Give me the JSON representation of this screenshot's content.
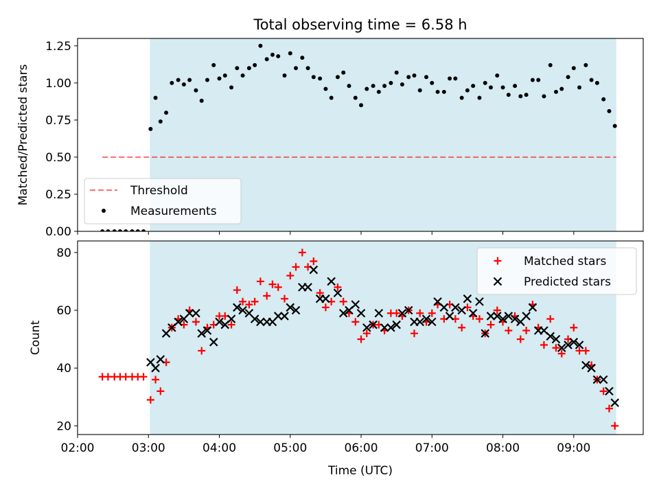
{
  "colors": {
    "shade": "#add8e6",
    "threshold": "#ff0000",
    "matched": "#ff0000",
    "predicted": "#000000",
    "measurement": "#000000"
  },
  "chart_data": [
    {
      "type": "scatter",
      "title": "Total observing time = 6.58 h",
      "xlabel": "",
      "ylabel": "Matched/Predicted stars",
      "ylim": [
        0,
        1.3
      ],
      "yticks": [
        "0.00",
        "0.25",
        "0.50",
        "0.75",
        "1.00",
        "1.25"
      ],
      "ytick_values": [
        0,
        0.25,
        0.5,
        0.75,
        1.0,
        1.25
      ],
      "xlim_hours": [
        2.0,
        9.98
      ],
      "shaded_span_hours": [
        3.02,
        9.6
      ],
      "legend_position": "lower-left",
      "series": [
        {
          "name": "Threshold",
          "kind": "dashed-line",
          "x_hours": [
            2.35,
            9.6
          ],
          "y": [
            0.5,
            0.5
          ]
        },
        {
          "name": "Measurements",
          "kind": "dot",
          "x_hours": [
            2.35,
            2.43,
            2.52,
            2.6,
            2.68,
            2.77,
            2.85,
            2.93,
            3.03,
            3.1,
            3.17,
            3.25,
            3.33,
            3.42,
            3.5,
            3.58,
            3.67,
            3.75,
            3.83,
            3.92,
            4.0,
            4.08,
            4.17,
            4.25,
            4.33,
            4.42,
            4.5,
            4.58,
            4.67,
            4.75,
            4.83,
            4.92,
            5.0,
            5.08,
            5.17,
            5.25,
            5.33,
            5.42,
            5.5,
            5.58,
            5.67,
            5.75,
            5.83,
            5.92,
            6.0,
            6.08,
            6.17,
            6.25,
            6.33,
            6.42,
            6.5,
            6.58,
            6.67,
            6.75,
            6.83,
            6.92,
            7.0,
            7.08,
            7.17,
            7.25,
            7.33,
            7.42,
            7.5,
            7.58,
            7.67,
            7.75,
            7.83,
            7.92,
            8.0,
            8.08,
            8.17,
            8.25,
            8.33,
            8.42,
            8.5,
            8.58,
            8.67,
            8.75,
            8.83,
            8.92,
            9.0,
            9.08,
            9.17,
            9.25,
            9.33,
            9.42,
            9.5,
            9.58
          ],
          "y": [
            0,
            0,
            0,
            0,
            0,
            0,
            0,
            0,
            0.69,
            0.9,
            0.74,
            0.8,
            1.0,
            1.02,
            0.99,
            1.02,
            0.95,
            0.88,
            1.02,
            1.12,
            1.03,
            1.05,
            0.97,
            1.1,
            1.05,
            1.1,
            1.12,
            1.25,
            1.16,
            1.19,
            1.18,
            1.05,
            1.2,
            1.1,
            1.17,
            1.1,
            1.04,
            1.03,
            0.96,
            0.9,
            1.04,
            1.07,
            0.98,
            0.9,
            0.85,
            0.96,
            0.98,
            0.94,
            0.98,
            1.0,
            1.07,
            0.99,
            1.04,
            1.05,
            0.95,
            1.04,
            1.0,
            0.94,
            0.94,
            1.03,
            1.03,
            0.9,
            0.95,
            0.98,
            0.9,
            1.0,
            0.97,
            1.05,
            0.97,
            0.92,
            0.98,
            0.91,
            0.92,
            1.02,
            1.02,
            0.91,
            1.12,
            0.94,
            0.96,
            1.04,
            1.1,
            0.97,
            1.12,
            1.02,
            1.0,
            0.89,
            0.81,
            0.71
          ]
        }
      ]
    },
    {
      "type": "scatter",
      "title": "",
      "xlabel": "Time (UTC)",
      "ylabel": "Count",
      "ylim": [
        17,
        84
      ],
      "yticks": [
        "20",
        "40",
        "60",
        "80"
      ],
      "ytick_values": [
        20,
        40,
        60,
        80
      ],
      "xticks": [
        "02:00",
        "03:00",
        "04:00",
        "05:00",
        "06:00",
        "07:00",
        "08:00",
        "09:00"
      ],
      "xtick_hours": [
        2,
        3,
        4,
        5,
        6,
        7,
        8,
        9
      ],
      "xlim_hours": [
        2.0,
        9.98
      ],
      "shaded_span_hours": [
        3.02,
        9.6
      ],
      "legend_position": "upper-right",
      "series": [
        {
          "name": "Matched stars",
          "kind": "plus",
          "x_hours": [
            2.35,
            2.43,
            2.52,
            2.6,
            2.68,
            2.77,
            2.85,
            2.93,
            3.03,
            3.1,
            3.17,
            3.25,
            3.33,
            3.42,
            3.5,
            3.58,
            3.67,
            3.75,
            3.83,
            3.92,
            4.0,
            4.08,
            4.17,
            4.25,
            4.33,
            4.42,
            4.5,
            4.58,
            4.67,
            4.75,
            4.83,
            4.92,
            5.0,
            5.08,
            5.17,
            5.25,
            5.33,
            5.42,
            5.5,
            5.58,
            5.67,
            5.75,
            5.83,
            5.92,
            6.0,
            6.08,
            6.17,
            6.25,
            6.33,
            6.42,
            6.5,
            6.58,
            6.67,
            6.75,
            6.83,
            6.92,
            7.0,
            7.08,
            7.17,
            7.25,
            7.33,
            7.42,
            7.5,
            7.58,
            7.67,
            7.75,
            7.83,
            7.92,
            8.0,
            8.08,
            8.17,
            8.25,
            8.33,
            8.42,
            8.5,
            8.58,
            8.67,
            8.75,
            8.83,
            8.92,
            9.0,
            9.08,
            9.17,
            9.25,
            9.33,
            9.42,
            9.5,
            9.58
          ],
          "y": [
            37,
            37,
            37,
            37,
            37,
            37,
            37,
            37,
            29,
            36,
            32,
            42,
            54,
            57,
            55,
            60,
            56,
            46,
            54,
            55,
            58,
            58,
            55,
            67,
            63,
            62,
            63,
            70,
            65,
            69,
            68,
            64,
            72,
            75,
            80,
            75,
            77,
            66,
            61,
            63,
            68,
            63,
            59,
            56,
            50,
            52,
            55,
            55,
            53,
            59,
            59,
            58,
            60,
            52,
            59,
            56,
            59,
            62,
            57,
            62,
            57,
            54,
            61,
            58,
            57,
            52,
            55,
            60,
            56,
            53,
            58,
            50,
            53,
            62,
            54,
            48,
            57,
            47,
            45,
            50,
            54,
            46,
            46,
            41,
            36,
            32,
            26,
            20
          ]
        },
        {
          "name": "Predicted stars",
          "kind": "x",
          "x_hours": [
            3.03,
            3.1,
            3.17,
            3.25,
            3.33,
            3.42,
            3.5,
            3.58,
            3.67,
            3.75,
            3.83,
            3.92,
            4.0,
            4.08,
            4.17,
            4.25,
            4.33,
            4.42,
            4.5,
            4.58,
            4.67,
            4.75,
            4.83,
            4.92,
            5.0,
            5.08,
            5.17,
            5.25,
            5.33,
            5.42,
            5.5,
            5.58,
            5.67,
            5.75,
            5.83,
            5.92,
            6.0,
            6.08,
            6.17,
            6.25,
            6.33,
            6.42,
            6.5,
            6.58,
            6.67,
            6.75,
            6.83,
            6.92,
            7.0,
            7.08,
            7.17,
            7.25,
            7.33,
            7.42,
            7.5,
            7.58,
            7.67,
            7.75,
            7.83,
            7.92,
            8.0,
            8.08,
            8.17,
            8.25,
            8.33,
            8.42,
            8.5,
            8.58,
            8.67,
            8.75,
            8.83,
            8.92,
            9.0,
            9.08,
            9.17,
            9.25,
            9.33,
            9.42,
            9.5,
            9.58
          ],
          "y": [
            42,
            40,
            43,
            52,
            54,
            56,
            57,
            59,
            59,
            52,
            53,
            49,
            56,
            55,
            57,
            61,
            60,
            59,
            57,
            56,
            56,
            56,
            58,
            58,
            61,
            60,
            68,
            68,
            74,
            64,
            64,
            70,
            66,
            59,
            60,
            62,
            59,
            54,
            55,
            59,
            54,
            54,
            55,
            59,
            60,
            56,
            56,
            57,
            56,
            63,
            61,
            58,
            61,
            60,
            64,
            59,
            63,
            52,
            58,
            58,
            57,
            58,
            57,
            56,
            58,
            61,
            53,
            53,
            51,
            50,
            47,
            48,
            49,
            48,
            41,
            40,
            36,
            36,
            32,
            28
          ]
        }
      ]
    }
  ]
}
